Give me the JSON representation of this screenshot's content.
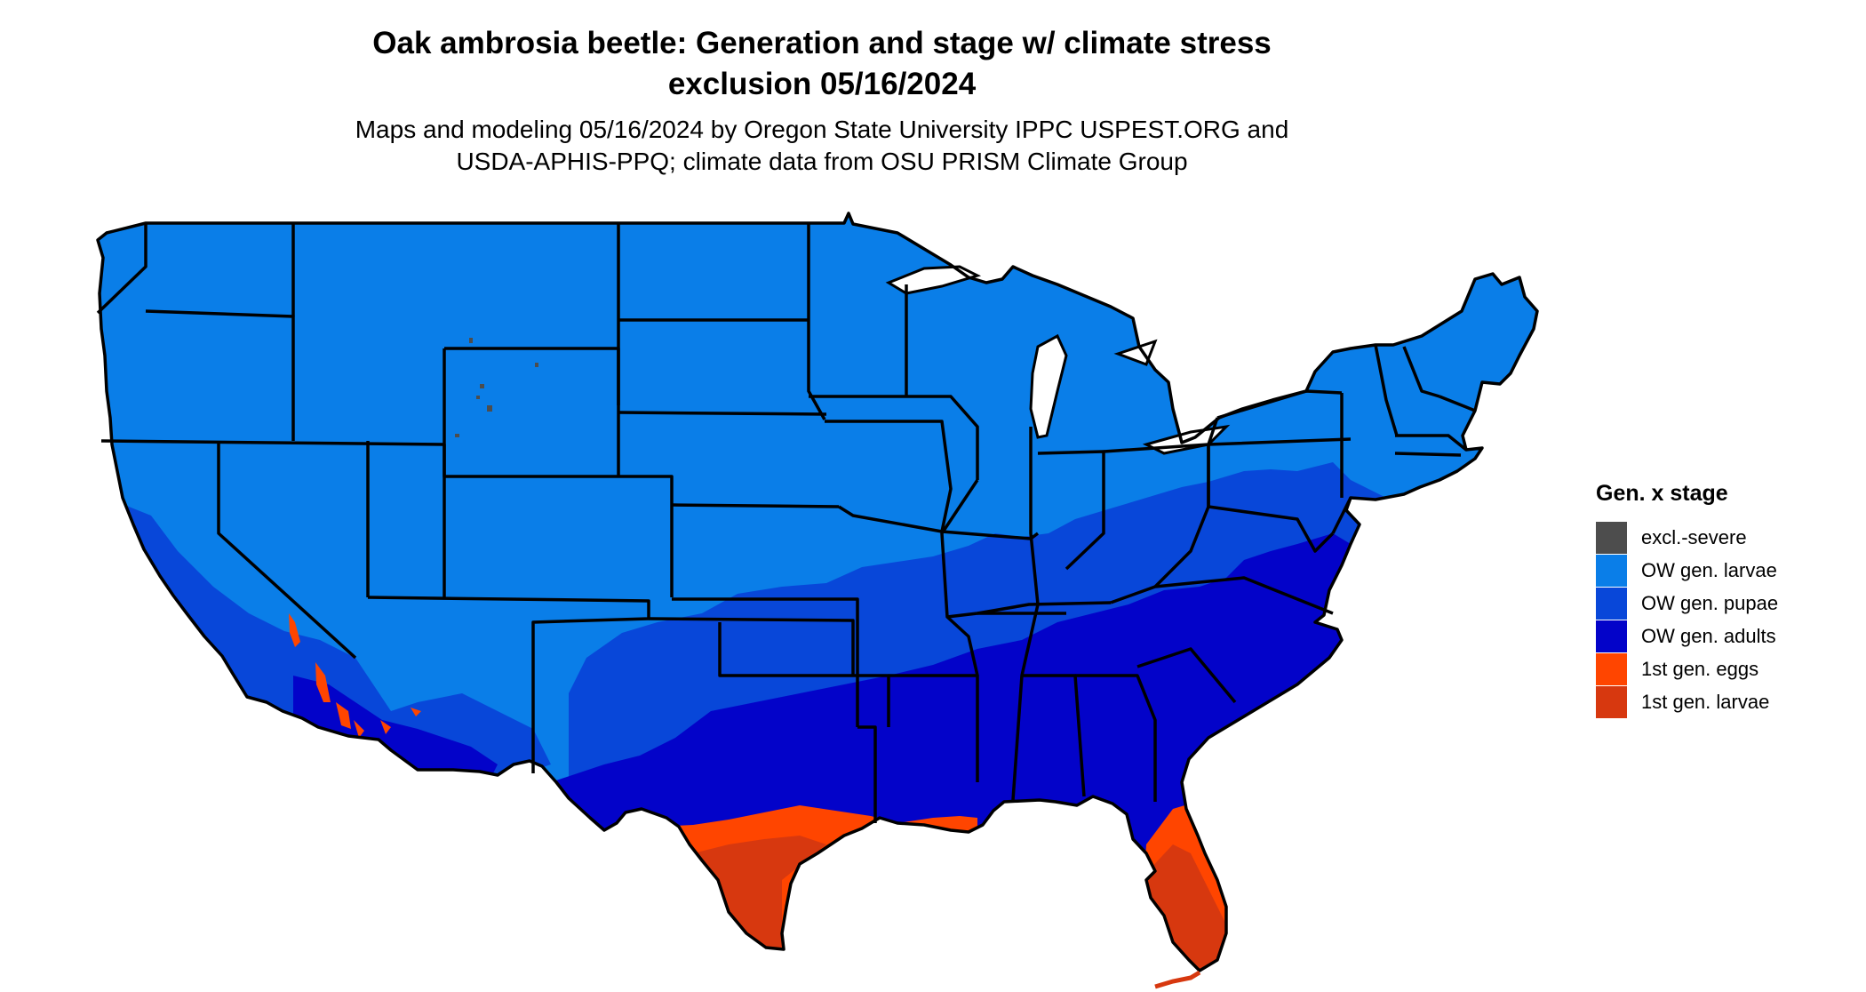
{
  "title": {
    "line1": "Oak ambrosia beetle: Generation and stage w/ climate stress",
    "line2": "exclusion 05/16/2024"
  },
  "subtitle": {
    "line1": "Maps and modeling 05/16/2024 by Oregon State University IPPC USPEST.ORG and",
    "line2": "USDA-APHIS-PPQ; climate data from OSU PRISM Climate Group"
  },
  "legend": {
    "title": "Gen. x stage",
    "items": [
      {
        "label": "excl.-severe",
        "color": "#4d4d4d"
      },
      {
        "label": "OW gen. larvae",
        "color": "#0a7ee8"
      },
      {
        "label": "OW gen. pupae",
        "color": "#0847d9"
      },
      {
        "label": "OW gen. adults",
        "color": "#0303c9"
      },
      {
        "label": "1st gen. eggs",
        "color": "#ff4500"
      },
      {
        "label": "1st gen. larvae",
        "color": "#d7380f"
      }
    ]
  },
  "map": {
    "region": "contiguous United States",
    "boundary_color": "#000000",
    "zones": [
      {
        "stage": "OW gen. larvae",
        "extent": "northern and western states"
      },
      {
        "stage": "OW gen. pupae",
        "extent": "mid-south band, coastal California, Mid-Atlantic fringe"
      },
      {
        "stage": "OW gen. adults",
        "extent": "Gulf states, lower Southeast, desert southwest"
      },
      {
        "stage": "1st gen. eggs",
        "extent": "upper Texas coast, south Louisiana, central Florida, scattered Arizona/California"
      },
      {
        "stage": "1st gen. larvae",
        "extent": "south Texas, peninsular Florida, Keys"
      },
      {
        "stage": "excl.-severe",
        "extent": "scattered Wyoming/Colorado high elevation"
      }
    ]
  }
}
